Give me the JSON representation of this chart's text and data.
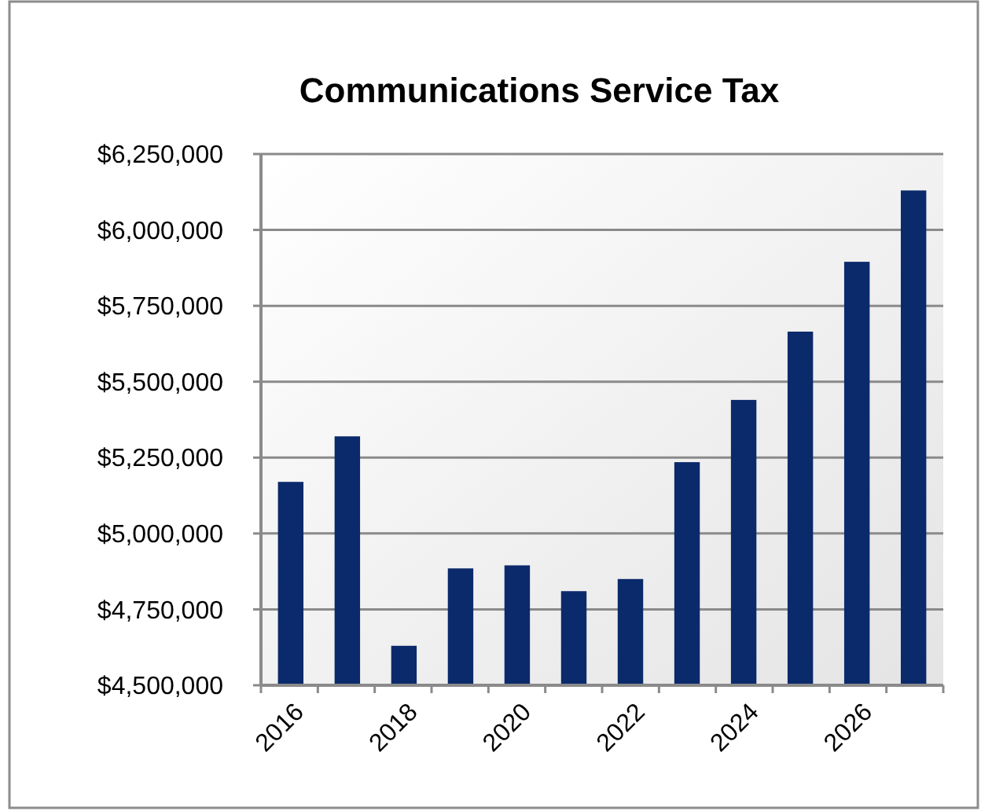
{
  "chart_data": {
    "type": "bar",
    "title": "Communications Service Tax",
    "categories": [
      "2016",
      null,
      "2018",
      null,
      "2020",
      null,
      "2022",
      null,
      "2024",
      null,
      "2026",
      null
    ],
    "values": [
      5170000,
      5320000,
      4630000,
      4885000,
      4895000,
      4810000,
      4850000,
      5235000,
      5440000,
      5665000,
      5895000,
      6130000
    ],
    "color": "#0b2a6b",
    "ylim": [
      4500000,
      6250000
    ],
    "yticks": [
      {
        "value": 4500000,
        "label": "$4,500,000"
      },
      {
        "value": 4750000,
        "label": "$4,750,000"
      },
      {
        "value": 5000000,
        "label": "$5,000,000"
      },
      {
        "value": 5250000,
        "label": "$5,250,000"
      },
      {
        "value": 5500000,
        "label": "$5,500,000"
      },
      {
        "value": 5750000,
        "label": "$5,750,000"
      },
      {
        "value": 6000000,
        "label": "$6,000,000"
      },
      {
        "value": 6250000,
        "label": "$6,250,000"
      }
    ],
    "grid": "y"
  }
}
